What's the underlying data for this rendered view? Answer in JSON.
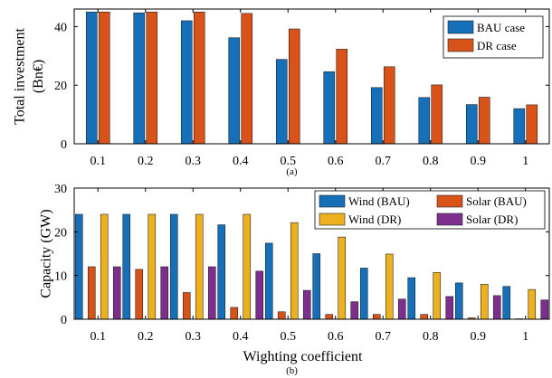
{
  "chart_data": [
    {
      "type": "bar",
      "caption": "(a)",
      "xlabel": "",
      "ylabel": [
        "Total investment",
        "(Bn€)"
      ],
      "categories": [
        "0.1",
        "0.2",
        "0.3",
        "0.4",
        "0.5",
        "0.6",
        "0.7",
        "0.8",
        "0.9",
        "1"
      ],
      "ylim": [
        0,
        46
      ],
      "yticks": [
        0,
        20,
        40
      ],
      "legend_position": "top-right",
      "series": [
        {
          "name": "BAU case",
          "color": "#1670b9",
          "values": [
            45,
            44.7,
            42,
            36.2,
            28.8,
            24.6,
            19.2,
            15.8,
            13.4,
            12
          ]
        },
        {
          "name": "DR case",
          "color": "#d95319",
          "values": [
            45,
            45,
            45,
            44.5,
            39.2,
            32.3,
            26.3,
            20.1,
            15.9,
            13.3
          ]
        }
      ]
    },
    {
      "type": "bar",
      "caption": "(b)",
      "xlabel": "Wighting coefficient",
      "ylabel": [
        "Capacity (GW)"
      ],
      "categories": [
        "0.1",
        "0.2",
        "0.3",
        "0.4",
        "0.5",
        "0.6",
        "0.7",
        "0.8",
        "0.9",
        "1"
      ],
      "ylim": [
        0,
        30
      ],
      "yticks": [
        0,
        10,
        20,
        30
      ],
      "legend_position": "top-right",
      "series": [
        {
          "name": "Wind (BAU)",
          "color": "#1670b9",
          "values": [
            24,
            24,
            24,
            21.6,
            17.4,
            15,
            11.7,
            9.5,
            8.3,
            7.5
          ]
        },
        {
          "name": "Solar (BAU)",
          "color": "#d95319",
          "values": [
            12,
            11.4,
            6.1,
            2.7,
            1.7,
            1.1,
            1.1,
            1.1,
            0.3,
            0.1
          ]
        },
        {
          "name": "Wind (DR)",
          "color": "#edb120",
          "values": [
            24,
            24,
            24,
            24,
            22.1,
            18.8,
            14.9,
            10.7,
            8,
            6.8
          ]
        },
        {
          "name": "Solar (DR)",
          "color": "#7e2f8e",
          "values": [
            12,
            12,
            12,
            11,
            6.6,
            4,
            4.6,
            5.2,
            5.4,
            4.4
          ]
        }
      ]
    }
  ]
}
